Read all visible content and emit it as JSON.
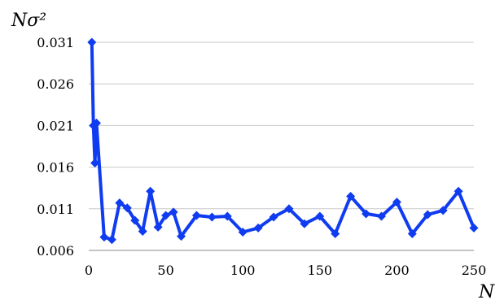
{
  "chart_data": {
    "type": "line",
    "xlabel": "N",
    "ylabel": "Nσ²",
    "xlim": [
      0,
      250
    ],
    "ylim": [
      0.006,
      0.031
    ],
    "xticks": [
      0,
      50,
      100,
      150,
      200,
      250
    ],
    "xtick_labels": [
      "0",
      "50",
      "100",
      "150",
      "200",
      "250"
    ],
    "yticks": [
      0.006,
      0.011,
      0.016,
      0.021,
      0.026,
      0.031
    ],
    "ytick_labels": [
      "0.006",
      "0.011",
      "0.016",
      "0.021",
      "0.026",
      "0.031"
    ],
    "grid": "horizontal",
    "series": [
      {
        "color": "#0f3cf0",
        "marker": "diamond",
        "x": [
          2,
          3,
          4,
          5,
          10,
          15,
          20,
          25,
          30,
          35,
          40,
          45,
          50,
          55,
          60,
          70,
          80,
          90,
          100,
          110,
          120,
          130,
          140,
          150,
          160,
          170,
          180,
          190,
          200,
          210,
          220,
          230,
          240,
          250
        ],
        "y": [
          0.031,
          0.021,
          0.0165,
          0.0213,
          0.0076,
          0.0073,
          0.0117,
          0.0111,
          0.0096,
          0.0083,
          0.0131,
          0.0088,
          0.0102,
          0.0106,
          0.0077,
          0.0102,
          0.01,
          0.0101,
          0.0082,
          0.0087,
          0.01,
          0.011,
          0.0092,
          0.0101,
          0.008,
          0.0125,
          0.0104,
          0.0101,
          0.0118,
          0.008,
          0.0103,
          0.0108,
          0.0131,
          0.0087
        ]
      }
    ]
  }
}
